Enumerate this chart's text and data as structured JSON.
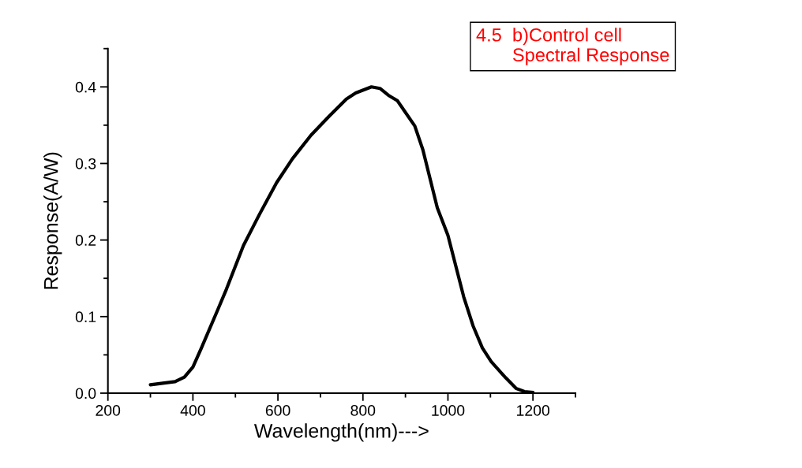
{
  "chart_data": {
    "type": "line",
    "title": "4.5  b)Control cell\n       Spectral Response",
    "xlabel": "Wavelength(nm)--->",
    "ylabel": "Response(A/W)",
    "xlim": [
      200,
      1300
    ],
    "xticks": [
      200,
      400,
      600,
      800,
      1000,
      1200
    ],
    "ylim": [
      0,
      0.45
    ],
    "yticks": [
      {
        "value": 0,
        "label": "0.0"
      },
      0.1,
      0.2,
      0.3,
      0.4
    ],
    "grid": false,
    "legend": false,
    "marker": "none",
    "line_style": "solid",
    "series": [
      {
        "color": "#000000",
        "x": [
          300,
          358,
          380,
          400,
          420,
          457,
          479,
          519,
          557,
          597,
          634,
          678,
          721,
          761,
          783,
          820,
          840,
          860,
          881,
          922,
          941,
          975,
          1000,
          1037,
          1059,
          1081,
          1102,
          1136,
          1161,
          1180,
          1200
        ],
        "values": [
          0.011,
          0.015,
          0.021,
          0.034,
          0.059,
          0.107,
          0.136,
          0.193,
          0.234,
          0.275,
          0.306,
          0.337,
          0.362,
          0.384,
          0.392,
          0.4,
          0.398,
          0.389,
          0.382,
          0.349,
          0.318,
          0.242,
          0.206,
          0.126,
          0.088,
          0.059,
          0.041,
          0.02,
          0.006,
          0.002,
          0.001
        ]
      }
    ]
  }
}
